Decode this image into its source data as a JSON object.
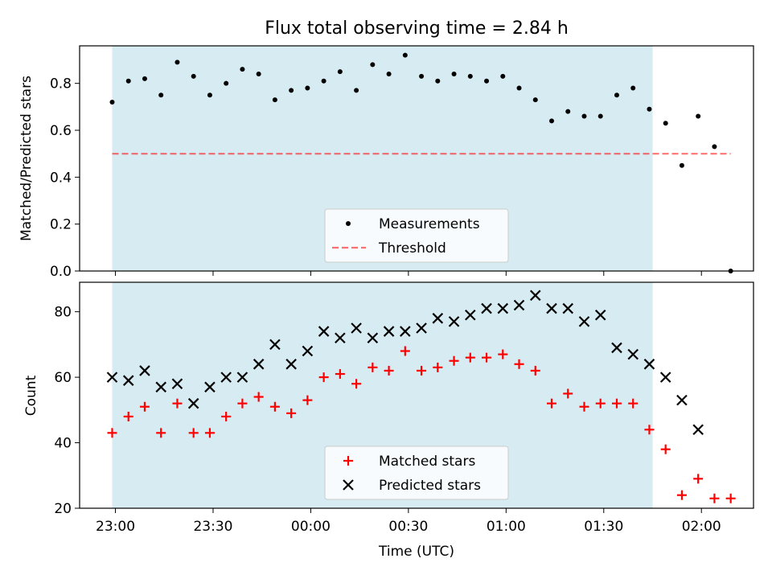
{
  "title": "Flux total observing time = 2.84 h",
  "colors": {
    "shade": "#add8e6",
    "measurement": "#000000",
    "threshold": "#ff0000",
    "matched": "#ff0000",
    "predicted": "#000000"
  },
  "chart_data": [
    {
      "type": "scatter",
      "panel": "top",
      "ylabel": "Matched/Predicted stars",
      "xlim": [
        "22:49",
        "02:16"
      ],
      "ylim": [
        0.0,
        0.96
      ],
      "yticks": [
        "0.0",
        "0.2",
        "0.4",
        "0.6",
        "0.8"
      ],
      "shaded_span": [
        "22:59",
        "01:45"
      ],
      "legend": {
        "placement": "lower-center",
        "entries": [
          "Measurements",
          "Threshold"
        ]
      },
      "threshold": {
        "name": "Threshold",
        "value": 0.5,
        "x_range": [
          "22:59",
          "02:09"
        ],
        "style": "dashed"
      },
      "series": [
        {
          "name": "Measurements",
          "marker": "dot",
          "x": [
            "22:59",
            "23:04",
            "23:09",
            "23:14",
            "23:19",
            "23:24",
            "23:29",
            "23:34",
            "23:39",
            "23:44",
            "23:49",
            "23:54",
            "23:59",
            "00:04",
            "00:09",
            "00:14",
            "00:19",
            "00:24",
            "00:29",
            "00:34",
            "00:39",
            "00:44",
            "00:49",
            "00:54",
            "00:59",
            "01:04",
            "01:09",
            "01:14",
            "01:19",
            "01:24",
            "01:29",
            "01:34",
            "01:39",
            "01:44",
            "01:49",
            "01:54",
            "01:59",
            "02:04",
            "02:09"
          ],
          "y": [
            0.72,
            0.81,
            0.82,
            0.75,
            0.89,
            0.83,
            0.75,
            0.8,
            0.86,
            0.84,
            0.73,
            0.77,
            0.78,
            0.81,
            0.85,
            0.77,
            0.88,
            0.84,
            0.92,
            0.83,
            0.81,
            0.84,
            0.83,
            0.81,
            0.83,
            0.78,
            0.73,
            0.64,
            0.68,
            0.66,
            0.66,
            0.75,
            0.78,
            0.69,
            0.63,
            0.45,
            0.66,
            0.53,
            0.0
          ]
        }
      ]
    },
    {
      "type": "scatter",
      "panel": "bottom",
      "xlabel": "Time (UTC)",
      "ylabel": "Count",
      "xlim": [
        "22:49",
        "02:16"
      ],
      "ylim": [
        20,
        89
      ],
      "yticks": [
        "20",
        "40",
        "60",
        "80"
      ],
      "xticks": [
        "23:00",
        "23:30",
        "00:00",
        "00:30",
        "01:00",
        "01:30",
        "02:00"
      ],
      "shaded_span": [
        "22:59",
        "01:45"
      ],
      "legend": {
        "placement": "lower-center",
        "entries": [
          "Matched stars",
          "Predicted stars"
        ]
      },
      "series": [
        {
          "name": "Matched stars",
          "marker": "plus",
          "x": [
            "22:59",
            "23:04",
            "23:09",
            "23:14",
            "23:19",
            "23:24",
            "23:29",
            "23:34",
            "23:39",
            "23:44",
            "23:49",
            "23:54",
            "23:59",
            "00:04",
            "00:09",
            "00:14",
            "00:19",
            "00:24",
            "00:29",
            "00:34",
            "00:39",
            "00:44",
            "00:49",
            "00:54",
            "00:59",
            "01:04",
            "01:09",
            "01:14",
            "01:19",
            "01:24",
            "01:29",
            "01:34",
            "01:39",
            "01:44",
            "01:49",
            "01:54",
            "01:59",
            "02:04",
            "02:09"
          ],
          "y": [
            43,
            48,
            51,
            43,
            52,
            43,
            43,
            48,
            52,
            54,
            51,
            49,
            53,
            60,
            61,
            58,
            63,
            62,
            68,
            62,
            63,
            65,
            66,
            66,
            67,
            64,
            62,
            52,
            55,
            51,
            52,
            52,
            52,
            44,
            38,
            24,
            29,
            23,
            23
          ]
        },
        {
          "name": "Predicted stars",
          "marker": "cross",
          "x": [
            "22:59",
            "23:04",
            "23:09",
            "23:14",
            "23:19",
            "23:24",
            "23:29",
            "23:34",
            "23:39",
            "23:44",
            "23:49",
            "23:54",
            "23:59",
            "00:04",
            "00:09",
            "00:14",
            "00:19",
            "00:24",
            "00:29",
            "00:34",
            "00:39",
            "00:44",
            "00:49",
            "00:54",
            "00:59",
            "01:04",
            "01:09",
            "01:14",
            "01:19",
            "01:24",
            "01:29",
            "01:34",
            "01:39",
            "01:44",
            "01:49",
            "01:54",
            "01:59"
          ],
          "y": [
            60,
            59,
            62,
            57,
            58,
            52,
            57,
            60,
            60,
            64,
            70,
            64,
            68,
            74,
            72,
            75,
            72,
            74,
            74,
            75,
            78,
            77,
            79,
            81,
            81,
            82,
            85,
            81,
            81,
            77,
            79,
            69,
            67,
            64,
            60,
            53,
            44
          ]
        }
      ]
    }
  ]
}
